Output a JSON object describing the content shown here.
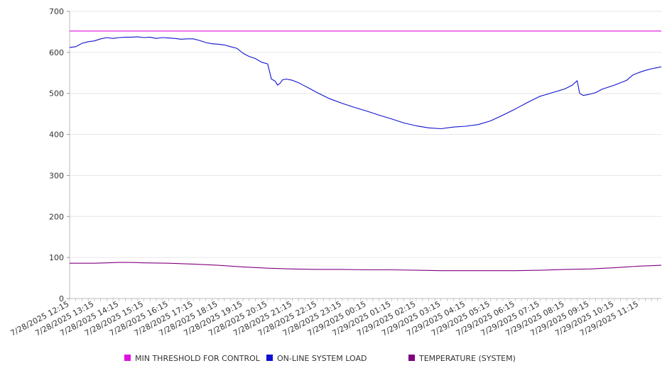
{
  "chart_data": {
    "type": "line",
    "title": "",
    "xlabel": "",
    "ylabel": "",
    "ylim": [
      0,
      700
    ],
    "yticks": [
      0,
      100,
      200,
      300,
      400,
      500,
      600,
      700
    ],
    "grid": true,
    "legend_position": "bottom",
    "x_tick_labels": [
      "7/28/2025 12:15",
      "7/28/2025 13:15",
      "7/28/2025 14:15",
      "7/28/2025 15:15",
      "7/28/2025 16:15",
      "7/28/2025 17:15",
      "7/28/2025 18:15",
      "7/28/2025 19:15",
      "7/28/2025 20:15",
      "7/28/2025 21:15",
      "7/28/2025 22:15",
      "7/28/2025 23:15",
      "7/29/2025 00:15",
      "7/29/2025 01:15",
      "7/29/2025 02:15",
      "7/29/2025 03:15",
      "7/29/2025 04:15",
      "7/29/2025 05:15",
      "7/29/2025 06:15",
      "7/29/2025 07:15",
      "7/29/2025 08:15",
      "7/29/2025 09:15",
      "7/29/2025 10:15",
      "7/29/2025 11:15"
    ],
    "x_range_hours": [
      0,
      23.9
    ],
    "series": [
      {
        "name": "MIN THRESHOLD FOR CONTROL",
        "color": "#e010e0",
        "x": [
          0,
          23.9
        ],
        "values": [
          652,
          652
        ]
      },
      {
        "name": "ON-LINE SYSTEM LOAD",
        "color": "#1010d0",
        "x": [
          0,
          0.25,
          0.5,
          0.75,
          1,
          1.25,
          1.5,
          1.75,
          2,
          2.25,
          2.5,
          2.75,
          3,
          3.25,
          3.5,
          3.75,
          4,
          4.25,
          4.5,
          4.75,
          5,
          5.25,
          5.5,
          5.75,
          6,
          6.25,
          6.5,
          6.75,
          7,
          7.25,
          7.5,
          7.75,
          8,
          8.15,
          8.3,
          8.4,
          8.5,
          8.6,
          8.75,
          9,
          9.25,
          9.5,
          9.75,
          10,
          10.5,
          11,
          11.5,
          12,
          12.5,
          13,
          13.5,
          14,
          14.5,
          15,
          15.5,
          16,
          16.5,
          17,
          17.5,
          18,
          18.5,
          19,
          19.5,
          20,
          20.3,
          20.5,
          20.6,
          20.75,
          21,
          21.25,
          21.5,
          22,
          22.5,
          22.75,
          23,
          23.25,
          23.5,
          23.75,
          23.9
        ],
        "values": [
          612,
          614,
          622,
          626,
          628,
          633,
          636,
          634,
          636,
          637,
          637,
          638,
          636,
          637,
          634,
          636,
          635,
          634,
          632,
          633,
          633,
          629,
          624,
          621,
          620,
          618,
          614,
          610,
          598,
          590,
          585,
          576,
          572,
          535,
          530,
          520,
          525,
          533,
          535,
          532,
          526,
          518,
          510,
          502,
          487,
          476,
          466,
          457,
          447,
          438,
          428,
          421,
          416,
          414,
          418,
          420,
          424,
          433,
          447,
          462,
          478,
          493,
          502,
          511,
          520,
          531,
          500,
          495,
          498,
          502,
          510,
          520,
          532,
          545,
          551,
          556,
          560,
          563,
          565
        ]
      },
      {
        "name": "TEMPERATURE (SYSTEM)",
        "color": "#800080",
        "x": [
          0,
          1,
          1.5,
          2,
          2.5,
          3,
          4,
          5,
          6,
          7,
          8,
          9,
          10,
          11,
          12,
          13,
          14,
          15,
          16,
          17,
          18,
          19,
          20,
          21,
          22,
          23,
          23.9
        ],
        "values": [
          86,
          86,
          87,
          88,
          88,
          87,
          86,
          84,
          81,
          77,
          74,
          72,
          71,
          71,
          70,
          70,
          69,
          68,
          68,
          68,
          68,
          69,
          71,
          72,
          75,
          79,
          81
        ]
      }
    ]
  }
}
